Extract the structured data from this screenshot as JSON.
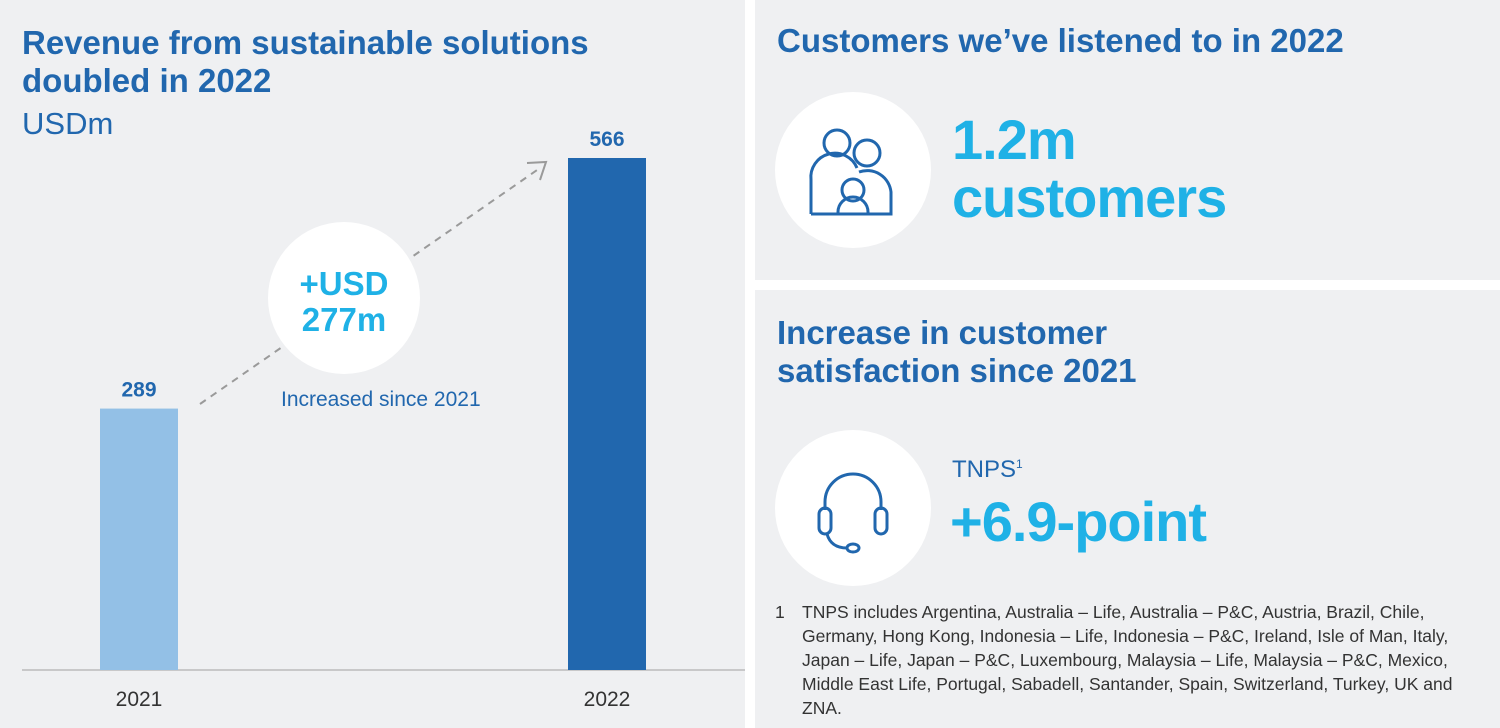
{
  "left": {
    "title_line1": "Revenue from sustainable solutions",
    "title_line2": "doubled in 2022",
    "unit": "USDm",
    "callout_line1": "+USD",
    "callout_line2": "277m",
    "callout_caption": "Increased since 2021"
  },
  "chart_data": {
    "type": "bar",
    "title": "Revenue from sustainable solutions doubled in 2022",
    "ylabel": "USDm",
    "categories": [
      "2021",
      "2022"
    ],
    "values": [
      289,
      566
    ],
    "labels": [
      "289",
      "566"
    ],
    "colors": [
      "#93c0e6",
      "#2167ae"
    ],
    "ylim": [
      0,
      566
    ],
    "grid": false,
    "annotation": "+USD 277m Increased since 2021"
  },
  "customers": {
    "title": "Customers we’ve listened to in 2022",
    "value": "1.2m",
    "label": "customers",
    "icon": "family-icon"
  },
  "satisfaction": {
    "title_line1": "Increase in customer",
    "title_line2": "satisfaction since 2021",
    "metric": "TNPS",
    "metric_sup": "1",
    "value": "+6.9-point",
    "icon": "headset-icon",
    "footnote_number": "1",
    "footnote": "TNPS includes Argentina, Australia – Life, Australia – P&C, Austria, Brazil, Chile, Germany, Hong Kong, Indonesia – Life, Indonesia – P&C, Ireland, Isle of Man, Italy, Japan – Life, Japan – P&C, Luxembourg, Malaysia – Life, Malaysia – P&C, Mexico, Middle East Life, Portugal, Sabadell, Santander, Spain, Switzerland, Turkey, UK and ZNA."
  },
  "colors": {
    "heading": "#2167ae",
    "accent": "#1fb1e6",
    "background": "#eff0f2"
  }
}
